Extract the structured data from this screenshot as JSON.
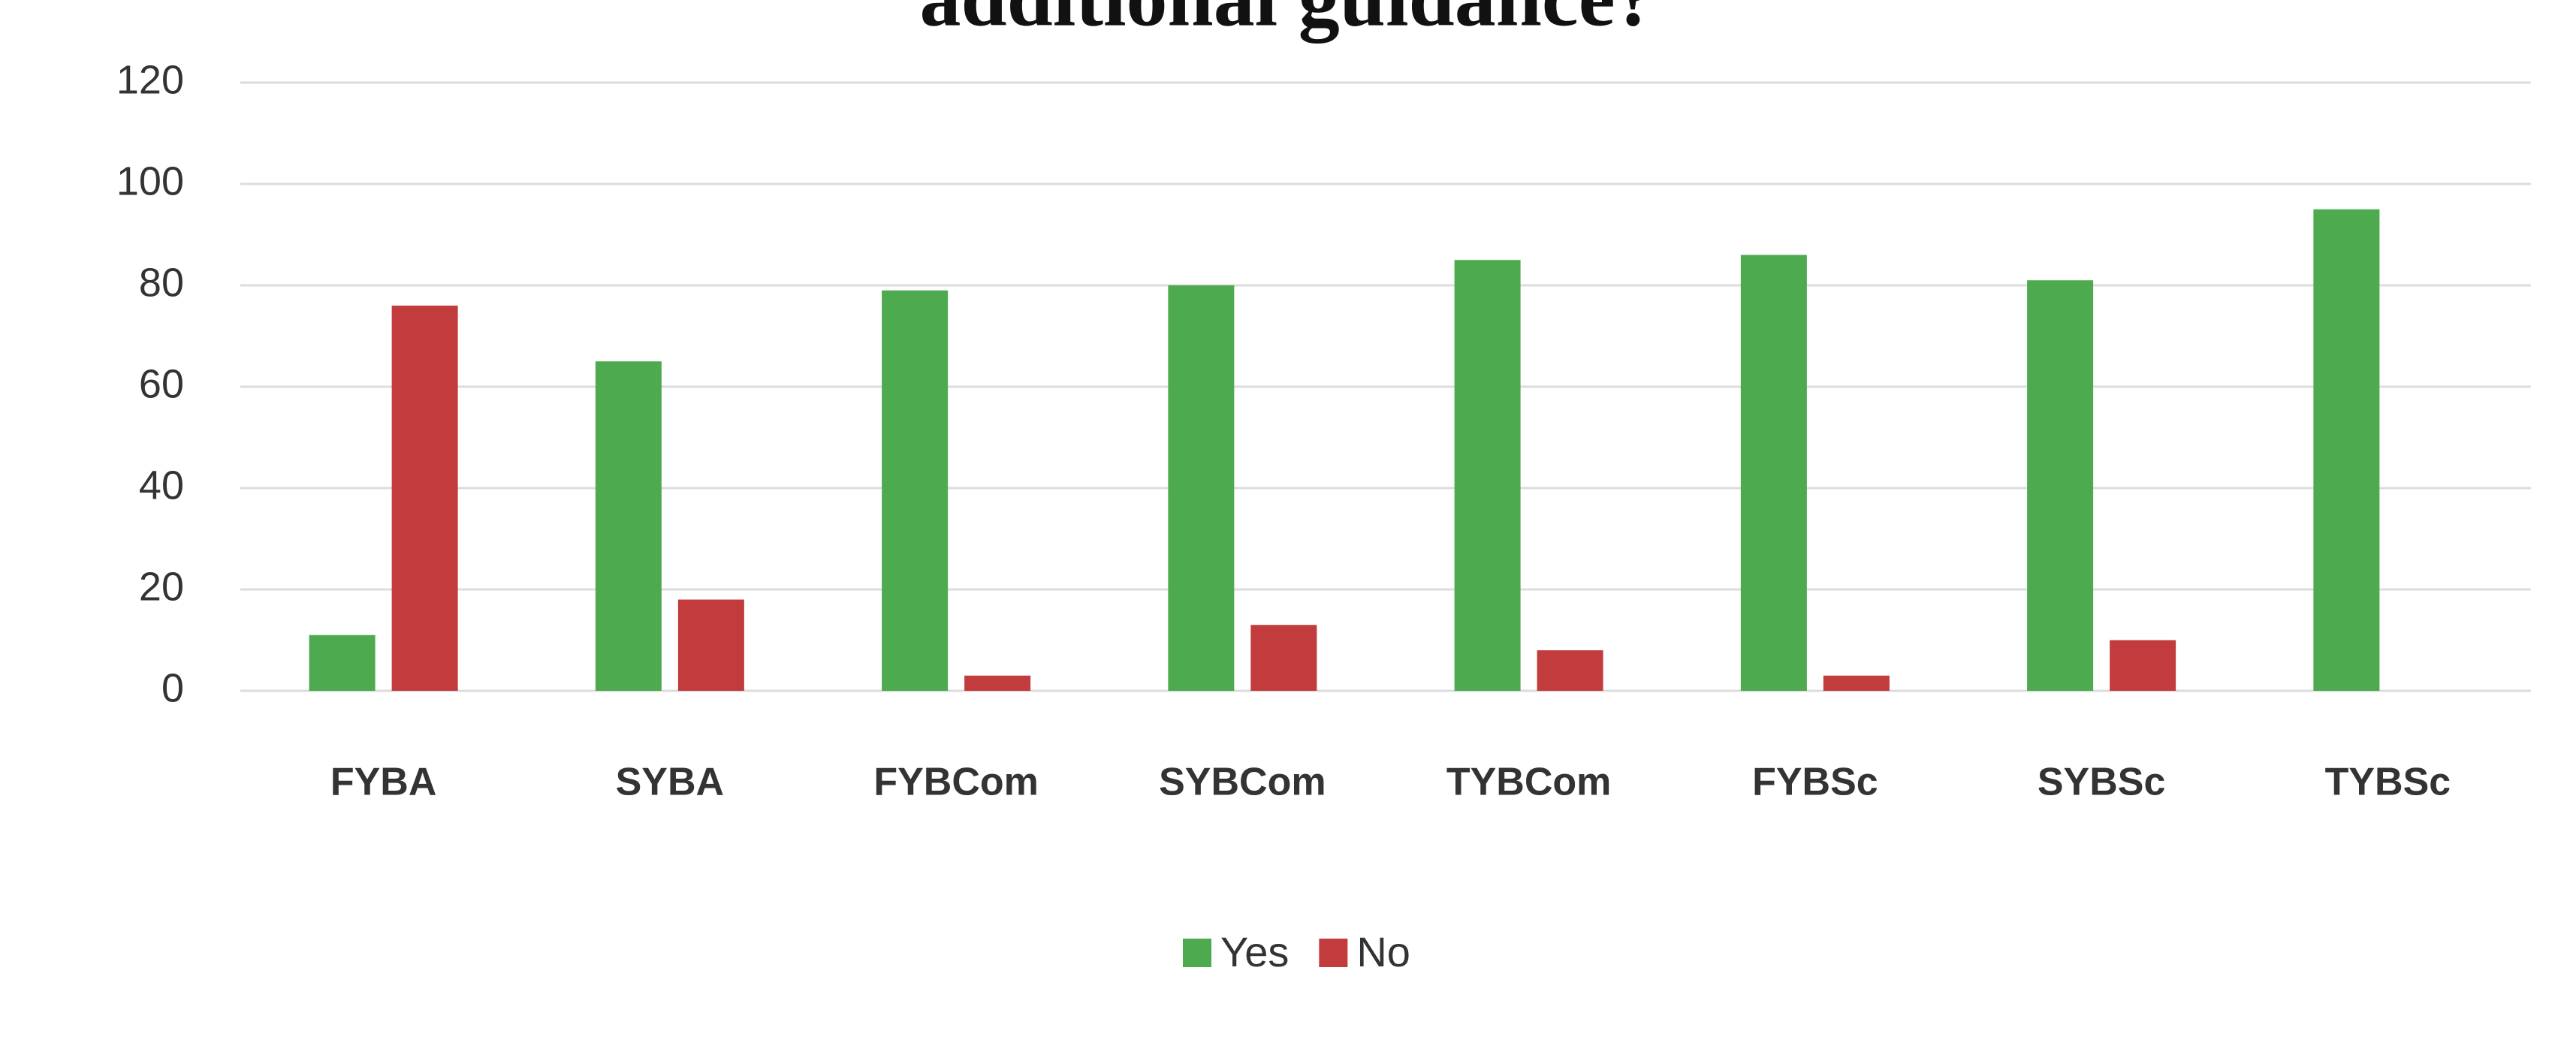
{
  "chart_data": {
    "type": "bar",
    "title": "additional guidance?",
    "categories": [
      "FYBA",
      "SYBA",
      "FYBCom",
      "SYBCom",
      "TYBCom",
      "FYBSc",
      "SYBSc",
      "TYBSc"
    ],
    "series": [
      {
        "name": "Yes",
        "color": "#4daa4f",
        "values": [
          11,
          65,
          79,
          80,
          85,
          86,
          81,
          95
        ]
      },
      {
        "name": "No",
        "color": "#c23b3d",
        "values": [
          76,
          18,
          3,
          13,
          8,
          3,
          10,
          0
        ]
      }
    ],
    "ylim": [
      0,
      120
    ],
    "yticks": [
      0,
      20,
      40,
      60,
      80,
      100,
      120
    ],
    "grid": true,
    "legend": "bottom"
  }
}
